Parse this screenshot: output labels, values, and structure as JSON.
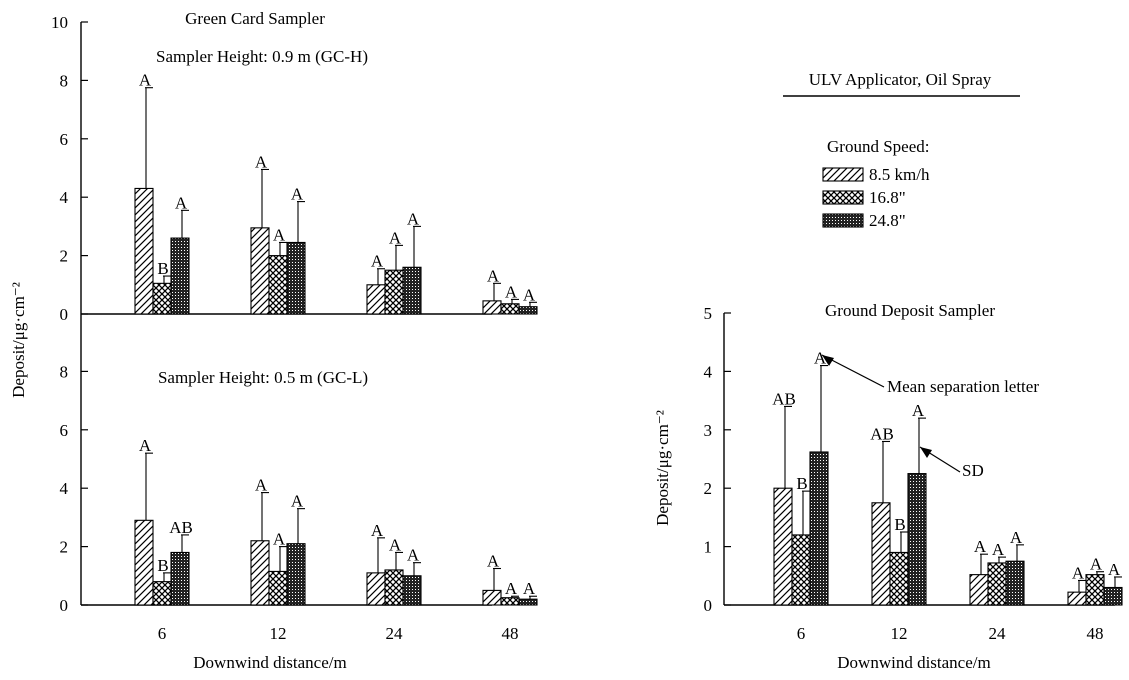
{
  "panel_title": "Green Card Sampler",
  "legend": {
    "title": "ULV Applicator, Oil Spray",
    "subtitle": "Ground Speed:",
    "items": [
      {
        "label": "8.5 km/h",
        "pattern": "hatch"
      },
      {
        "label": "16.8\"",
        "pattern": "cross"
      },
      {
        "label": "24.8\"",
        "pattern": "dense"
      }
    ]
  },
  "annotations": {
    "mean_sep": "Mean separation letter",
    "sd": "SD"
  },
  "chart_data": [
    {
      "type": "bar",
      "title": "Sampler Height: 0.9 m (GC-H)",
      "ylabel": "Deposit/μg·cm⁻²",
      "xlabel": "",
      "ylim": [
        0,
        10
      ],
      "yticks": [
        0,
        2,
        4,
        6,
        8,
        10
      ],
      "categories": [
        "6",
        "12",
        "24",
        "48"
      ],
      "series": [
        {
          "name": "8.5 km/h",
          "values": [
            4.3,
            2.95,
            1.0,
            0.45
          ],
          "sd": [
            3.45,
            2.0,
            0.55,
            0.6
          ],
          "letters": [
            "A",
            "A",
            "A",
            "A"
          ]
        },
        {
          "name": "16.8\"",
          "values": [
            1.05,
            2.0,
            1.5,
            0.35
          ],
          "sd": [
            0.25,
            0.45,
            0.85,
            0.15
          ],
          "letters": [
            "B",
            "A",
            "A",
            "A"
          ]
        },
        {
          "name": "24.8\"",
          "values": [
            2.6,
            2.45,
            1.6,
            0.25
          ],
          "sd": [
            0.95,
            1.4,
            1.4,
            0.15
          ],
          "letters": [
            "A",
            "A",
            "A",
            "A"
          ]
        }
      ]
    },
    {
      "type": "bar",
      "title": "Sampler Height: 0.5 m (GC-L)",
      "ylabel": "",
      "xlabel": "Downwind distance/m",
      "ylim": [
        0,
        10
      ],
      "yticks": [
        0,
        2,
        4,
        6,
        8
      ],
      "categories": [
        "6",
        "12",
        "24",
        "48"
      ],
      "series": [
        {
          "name": "8.5 km/h",
          "values": [
            2.9,
            2.2,
            1.1,
            0.5
          ],
          "sd": [
            2.3,
            1.65,
            1.2,
            0.75
          ],
          "letters": [
            "A",
            "A",
            "A",
            "A"
          ]
        },
        {
          "name": "16.8\"",
          "values": [
            0.8,
            1.15,
            1.2,
            0.25
          ],
          "sd": [
            0.3,
            0.85,
            0.6,
            0.05
          ],
          "letters": [
            "B",
            "A",
            "A",
            "A"
          ]
        },
        {
          "name": "24.8\"",
          "values": [
            1.8,
            2.1,
            1.0,
            0.2
          ],
          "sd": [
            0.6,
            1.2,
            0.45,
            0.1
          ],
          "letters": [
            "AB",
            "A",
            "A",
            "A"
          ]
        }
      ]
    },
    {
      "type": "bar",
      "title": "Ground Deposit Sampler",
      "ylabel": "Deposit/μg·cm⁻²",
      "xlabel": "Downwind distance/m",
      "ylim": [
        0,
        5
      ],
      "yticks": [
        0,
        1,
        2,
        3,
        4,
        5
      ],
      "categories": [
        "6",
        "12",
        "24",
        "48"
      ],
      "series": [
        {
          "name": "8.5 km/h",
          "values": [
            2.0,
            1.75,
            0.52,
            0.22
          ],
          "sd": [
            1.4,
            1.05,
            0.35,
            0.2
          ],
          "letters": [
            "AB",
            "AB",
            "A",
            "A"
          ]
        },
        {
          "name": "16.8\"",
          "values": [
            1.2,
            0.9,
            0.72,
            0.52
          ],
          "sd": [
            0.75,
            0.35,
            0.1,
            0.05
          ],
          "letters": [
            "B",
            "B",
            "A",
            "A"
          ]
        },
        {
          "name": "24.8\"",
          "values": [
            2.62,
            2.25,
            0.75,
            0.3
          ],
          "sd": [
            1.48,
            0.95,
            0.28,
            0.18
          ],
          "letters": [
            "A",
            "A",
            "A",
            "A"
          ]
        }
      ]
    }
  ]
}
